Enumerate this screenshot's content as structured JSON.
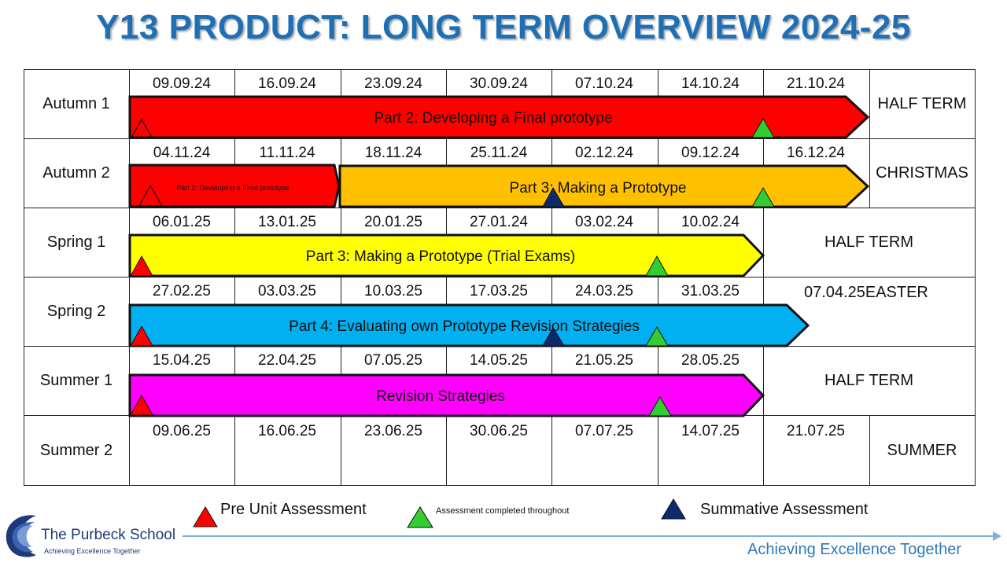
{
  "title": "Y13 PRODUCT: LONG TERM OVERVIEW 2024-25",
  "rows": [
    {
      "term": "Autumn 1",
      "dates": [
        "09.09.24",
        "16.09.24",
        "23.09.24",
        "30.09.24",
        "07.10.24",
        "14.10.24",
        "21.10.24"
      ],
      "end": "HALF TERM"
    },
    {
      "term": "Autumn 2",
      "dates": [
        "04.11.24",
        "11.11.24",
        "18.11.24",
        "25.11.24",
        "02.12.24",
        "09.12.24",
        "16.12.24"
      ],
      "end": "CHRISTMAS"
    },
    {
      "term": "Spring 1",
      "dates": [
        "06.01.25",
        "13.01.25",
        "20.01.25",
        "27.01.24",
        "03.02.24",
        "10.02.24"
      ],
      "end": "HALF TERM"
    },
    {
      "term": "Spring 2",
      "dates": [
        "27.02.25",
        "03.03.25",
        "10.03.25",
        "17.03.25",
        "24.03.25",
        "31.03.25"
      ],
      "end": "07.04.25EASTER"
    },
    {
      "term": "Summer 1",
      "dates": [
        "15.04.25",
        "22.04.25",
        "07.05.25",
        "14.05.25",
        "21.05.25",
        "28.05.25"
      ],
      "end": "HALF TERM"
    },
    {
      "term": "Summer 2",
      "dates": [
        "09.06.25",
        "16.06.25",
        "23.06.25",
        "30.06.25",
        "07.07.25",
        "14.07.25",
        "21.07.25"
      ],
      "end": "SUMMER"
    }
  ],
  "bars": [
    {
      "label": "Part 2: Developing a Final prototype",
      "color": "#ff0000"
    },
    {
      "label": "Part 2: Developing a Final prototype",
      "color": "#ff0000"
    },
    {
      "label": "Part 3: Making a Prototype",
      "color": "#ffc000"
    },
    {
      "label": "Part 3: Making a Prototype (Trial Exams)",
      "color": "#ffff00"
    },
    {
      "label": "Part 4: Evaluating own Prototype Revision Strategies",
      "color": "#00b0f0"
    },
    {
      "label": "Revision Strategies",
      "color": "#ff00ff"
    }
  ],
  "legend": {
    "pre_unit": "Pre Unit Assessment",
    "throughout": "Assessment completed throughout",
    "summative": "Summative Assessment"
  },
  "marker_colors": {
    "pre_unit": "#ff0000",
    "throughout": "#33cc33",
    "summative": "#0d2a6b"
  },
  "footer": {
    "school": "The Purbeck School",
    "school_tagline": "Achieving Excellence Together",
    "tagline": "Achieving Excellence Together"
  }
}
